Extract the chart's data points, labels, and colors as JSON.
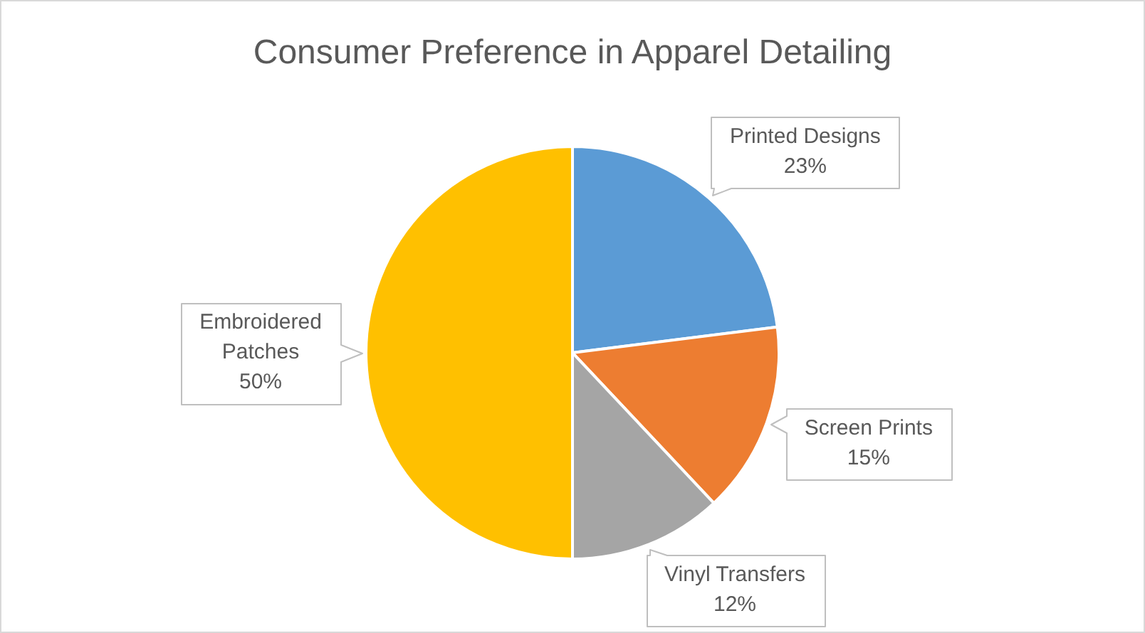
{
  "chart_data": {
    "type": "pie",
    "title": "Consumer Preference in Apparel Detailing",
    "categories": [
      "Printed Designs",
      "Screen Prints",
      "Vinyl Transfers",
      "Embroidered Patches"
    ],
    "values": [
      23,
      15,
      12,
      50
    ],
    "colors": [
      "#5b9bd5",
      "#ed7d31",
      "#a5a5a5",
      "#ffc000"
    ],
    "value_labels": [
      "23%",
      "15%",
      "12%",
      "50%"
    ]
  }
}
